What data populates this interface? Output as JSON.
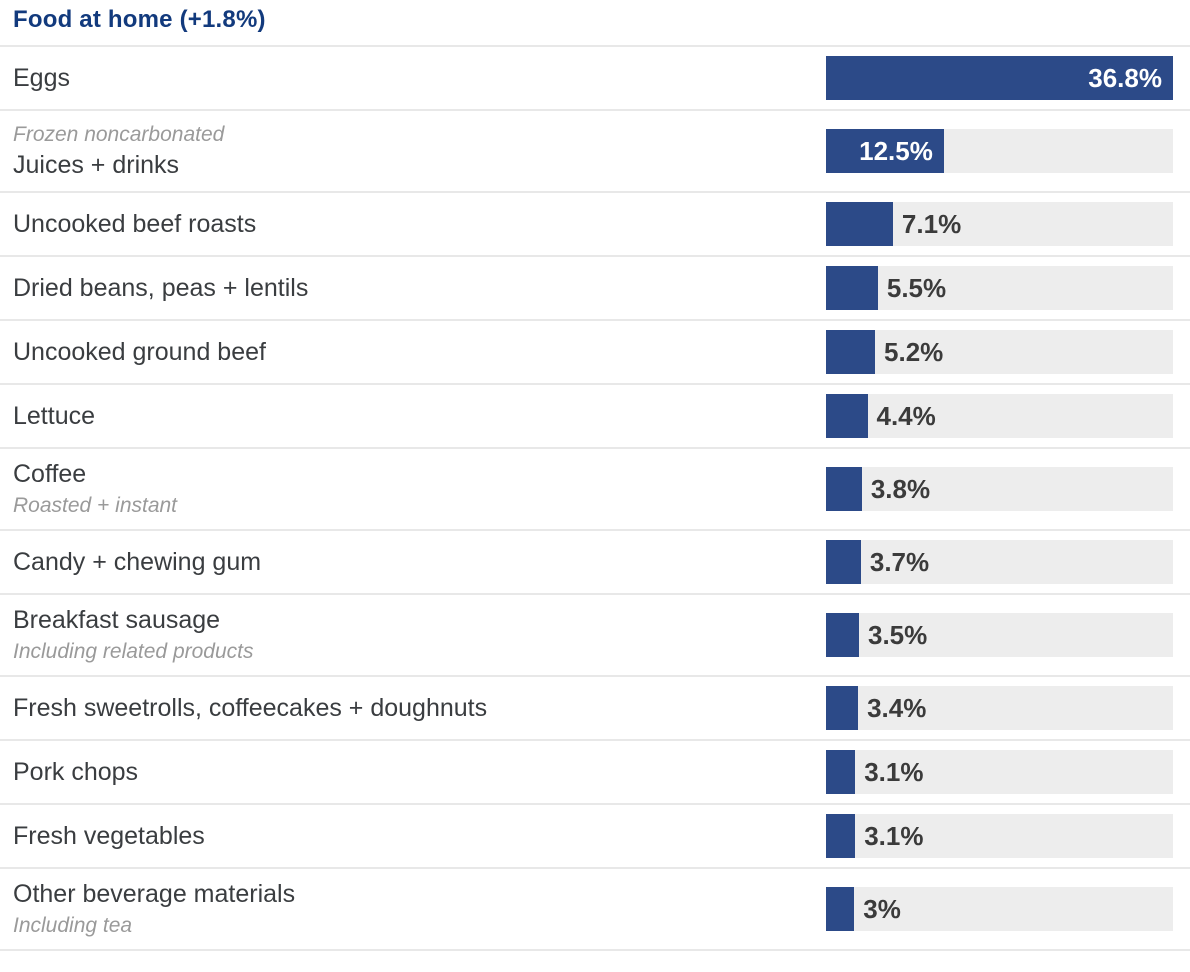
{
  "colors": {
    "bar_fill": "#2c4a88",
    "bar_track": "#ededed",
    "title_text": "#123a7d",
    "label_text": "#3a3d40",
    "sublabel_text": "#9a9a9a",
    "value_outside_text": "#3b3b3b",
    "value_inside_text": "#ffffff",
    "divider": "#e8e8e8"
  },
  "chart_data": {
    "type": "bar",
    "orientation": "horizontal",
    "title": "Food at home (+1.8%)",
    "xlim": [
      0,
      36.8
    ],
    "grid": false,
    "legend": "none",
    "value_unit": "%",
    "items": [
      {
        "label": "Eggs",
        "sublabel": "",
        "sublabel_position": "none",
        "value": 36.8,
        "value_display": "36.8%",
        "value_inside": true
      },
      {
        "label": "Juices + drinks",
        "sublabel": "Frozen noncarbonated",
        "sublabel_position": "above",
        "value": 12.5,
        "value_display": "12.5%",
        "value_inside": true
      },
      {
        "label": "Uncooked beef roasts",
        "sublabel": "",
        "sublabel_position": "none",
        "value": 7.1,
        "value_display": "7.1%",
        "value_inside": false
      },
      {
        "label": "Dried beans, peas + lentils",
        "sublabel": "",
        "sublabel_position": "none",
        "value": 5.5,
        "value_display": "5.5%",
        "value_inside": false
      },
      {
        "label": "Uncooked ground beef",
        "sublabel": "",
        "sublabel_position": "none",
        "value": 5.2,
        "value_display": "5.2%",
        "value_inside": false
      },
      {
        "label": "Lettuce",
        "sublabel": "",
        "sublabel_position": "none",
        "value": 4.4,
        "value_display": "4.4%",
        "value_inside": false
      },
      {
        "label": "Coffee",
        "sublabel": "Roasted + instant",
        "sublabel_position": "below",
        "value": 3.8,
        "value_display": "3.8%",
        "value_inside": false
      },
      {
        "label": "Candy + chewing gum",
        "sublabel": "",
        "sublabel_position": "none",
        "value": 3.7,
        "value_display": "3.7%",
        "value_inside": false
      },
      {
        "label": "Breakfast sausage",
        "sublabel": "Including related products",
        "sublabel_position": "below",
        "value": 3.5,
        "value_display": "3.5%",
        "value_inside": false
      },
      {
        "label": "Fresh sweetrolls, coffeecakes + doughnuts",
        "sublabel": "",
        "sublabel_position": "none",
        "value": 3.4,
        "value_display": "3.4%",
        "value_inside": false
      },
      {
        "label": "Pork chops",
        "sublabel": "",
        "sublabel_position": "none",
        "value": 3.1,
        "value_display": "3.1%",
        "value_inside": false
      },
      {
        "label": "Fresh vegetables",
        "sublabel": "",
        "sublabel_position": "none",
        "value": 3.1,
        "value_display": "3.1%",
        "value_inside": false
      },
      {
        "label": "Other beverage materials",
        "sublabel": "Including tea",
        "sublabel_position": "below",
        "value": 3.0,
        "value_display": "3%",
        "value_inside": false
      }
    ]
  }
}
